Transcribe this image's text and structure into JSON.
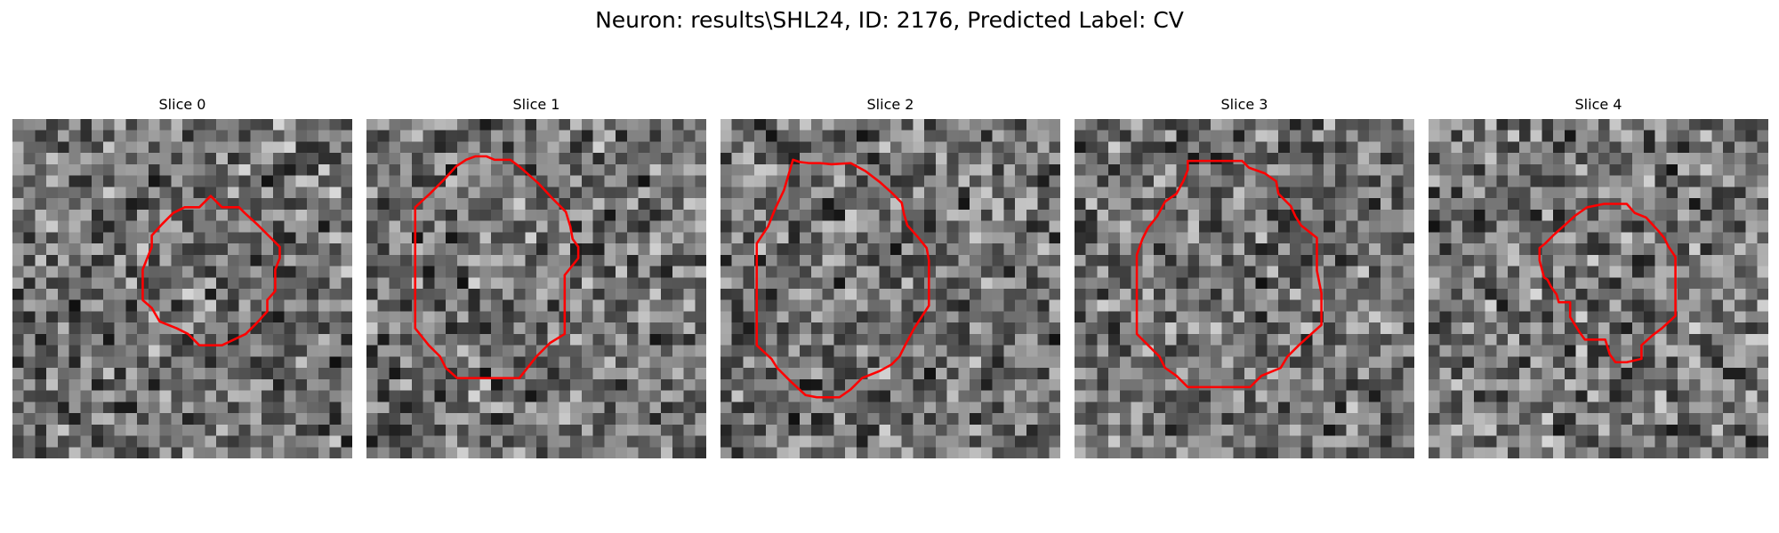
{
  "figure": {
    "title": "Neuron: results\\SHL24, ID: 2176, Predicted Label: CV"
  },
  "panels": [
    {
      "title": "Slice 0",
      "contour": [
        [
          17.5,
          6.8
        ],
        [
          18.5,
          7.8
        ],
        [
          20,
          7.8
        ],
        [
          20.5,
          8.3
        ],
        [
          21.6,
          9.3
        ],
        [
          22.6,
          10.3
        ],
        [
          23.6,
          11.3
        ],
        [
          23.6,
          12.3
        ],
        [
          23.2,
          13.3
        ],
        [
          23.2,
          15.2
        ],
        [
          22.5,
          16
        ],
        [
          22.5,
          17
        ],
        [
          21.6,
          18
        ],
        [
          20.6,
          19
        ],
        [
          18.5,
          20
        ],
        [
          16.5,
          20
        ],
        [
          15.5,
          19
        ],
        [
          14.5,
          18.5
        ],
        [
          13,
          17.9
        ],
        [
          12.3,
          16.7
        ],
        [
          11.5,
          16
        ],
        [
          11.5,
          13.3
        ],
        [
          12.3,
          11.3
        ],
        [
          12.3,
          10.3
        ],
        [
          13.2,
          9.3
        ],
        [
          14.2,
          8.3
        ],
        [
          15.2,
          7.8
        ],
        [
          16.5,
          7.8
        ]
      ]
    },
    {
      "title": "Slice 1",
      "contour": [
        [
          9.6,
          3.3
        ],
        [
          10.6,
          3.3
        ],
        [
          11.3,
          3.6
        ],
        [
          12.7,
          3.6
        ],
        [
          13.5,
          4.2
        ],
        [
          15.2,
          5.7
        ],
        [
          16.4,
          7
        ],
        [
          17.6,
          8.2
        ],
        [
          18,
          9.5
        ],
        [
          18.2,
          10.6
        ],
        [
          18.7,
          11.3
        ],
        [
          18.7,
          12.3
        ],
        [
          17.5,
          13.8
        ],
        [
          17.5,
          19
        ],
        [
          16.2,
          19.8
        ],
        [
          15,
          21
        ],
        [
          13.5,
          22.9
        ],
        [
          8,
          22.9
        ],
        [
          7,
          22
        ],
        [
          6.5,
          21
        ],
        [
          5.5,
          20
        ],
        [
          4.3,
          18.5
        ],
        [
          4.3,
          7.8
        ],
        [
          5.6,
          6.6
        ],
        [
          6.9,
          5.3
        ],
        [
          7.9,
          4.2
        ],
        [
          8.8,
          3.6
        ]
      ]
    },
    {
      "title": "Slice 2",
      "contour": [
        [
          6.4,
          3.6
        ],
        [
          7,
          3.8
        ],
        [
          7.8,
          3.9
        ],
        [
          8.8,
          3.9
        ],
        [
          9.8,
          4
        ],
        [
          11.5,
          3.9
        ],
        [
          12.8,
          4.6
        ],
        [
          14.1,
          5.6
        ],
        [
          15.1,
          6.5
        ],
        [
          16,
          7.4
        ],
        [
          16.2,
          8.4
        ],
        [
          16.5,
          9.4
        ],
        [
          17.4,
          10.4
        ],
        [
          18.2,
          11.4
        ],
        [
          18.4,
          12.5
        ],
        [
          18.4,
          16.5
        ],
        [
          17.1,
          18.5
        ],
        [
          16.3,
          20
        ],
        [
          15.8,
          21
        ],
        [
          15.1,
          21.7
        ],
        [
          14,
          22.3
        ],
        [
          12.5,
          22.9
        ],
        [
          11.5,
          23.9
        ],
        [
          10.5,
          24.6
        ],
        [
          8.5,
          24.6
        ],
        [
          7.5,
          24.4
        ],
        [
          6.2,
          23.2
        ],
        [
          5,
          22
        ],
        [
          4.5,
          21.2
        ],
        [
          3.2,
          20
        ],
        [
          3.2,
          17.4
        ],
        [
          3.2,
          11
        ],
        [
          4.2,
          9.5
        ],
        [
          4.8,
          8
        ],
        [
          5.6,
          6.3
        ]
      ]
    },
    {
      "title": "Slice 3",
      "contour": [
        [
          10,
          3.7
        ],
        [
          14.8,
          3.7
        ],
        [
          15.4,
          4.3
        ],
        [
          16.8,
          4.8
        ],
        [
          17.8,
          5.5
        ],
        [
          18,
          6.6
        ],
        [
          19.1,
          7.7
        ],
        [
          19.5,
          8.6
        ],
        [
          20,
          9.4
        ],
        [
          21.4,
          10.5
        ],
        [
          21.4,
          13.4
        ],
        [
          21.8,
          15.4
        ],
        [
          21.8,
          18.2
        ],
        [
          20.9,
          19
        ],
        [
          19.8,
          20
        ],
        [
          18.8,
          21
        ],
        [
          18.2,
          22
        ],
        [
          16.5,
          22.7
        ],
        [
          15.5,
          23.7
        ],
        [
          10,
          23.7
        ],
        [
          9,
          22.7
        ],
        [
          8,
          22
        ],
        [
          7.5,
          21
        ],
        [
          6.5,
          20
        ],
        [
          5.5,
          19
        ],
        [
          5.5,
          15
        ],
        [
          5.5,
          12
        ],
        [
          6,
          10.6
        ],
        [
          6.5,
          9.6
        ],
        [
          7.3,
          8.6
        ],
        [
          8,
          7.3
        ],
        [
          9,
          6.6
        ],
        [
          9.6,
          5.5
        ],
        [
          10,
          4.5
        ]
      ]
    },
    {
      "title": "Slice 4",
      "contour": [
        [
          15.5,
          7.5
        ],
        [
          17.5,
          7.5
        ],
        [
          18.2,
          8.3
        ],
        [
          19.2,
          8.7
        ],
        [
          20.3,
          9.9
        ],
        [
          20.8,
          10.5
        ],
        [
          21.2,
          11.3
        ],
        [
          21.8,
          12.2
        ],
        [
          21.8,
          17.4
        ],
        [
          20.6,
          18.5
        ],
        [
          19.8,
          19.1
        ],
        [
          18.8,
          20
        ],
        [
          18.8,
          21.2
        ],
        [
          17.5,
          21.5
        ],
        [
          16.5,
          21.5
        ],
        [
          16,
          20.8
        ],
        [
          15.6,
          19.5
        ],
        [
          15,
          19.5
        ],
        [
          13.8,
          19.5
        ],
        [
          13.3,
          18.8
        ],
        [
          12.5,
          17.5
        ],
        [
          12.5,
          16.2
        ],
        [
          11.5,
          16.2
        ],
        [
          11.3,
          15.5
        ],
        [
          10.8,
          14.8
        ],
        [
          10.5,
          14.2
        ],
        [
          10.2,
          14
        ],
        [
          9.8,
          12.5
        ],
        [
          9.8,
          11.4
        ],
        [
          10.3,
          11
        ],
        [
          11.1,
          10.2
        ],
        [
          12,
          9.4
        ],
        [
          13,
          8.5
        ],
        [
          14,
          7.8
        ]
      ]
    }
  ]
}
